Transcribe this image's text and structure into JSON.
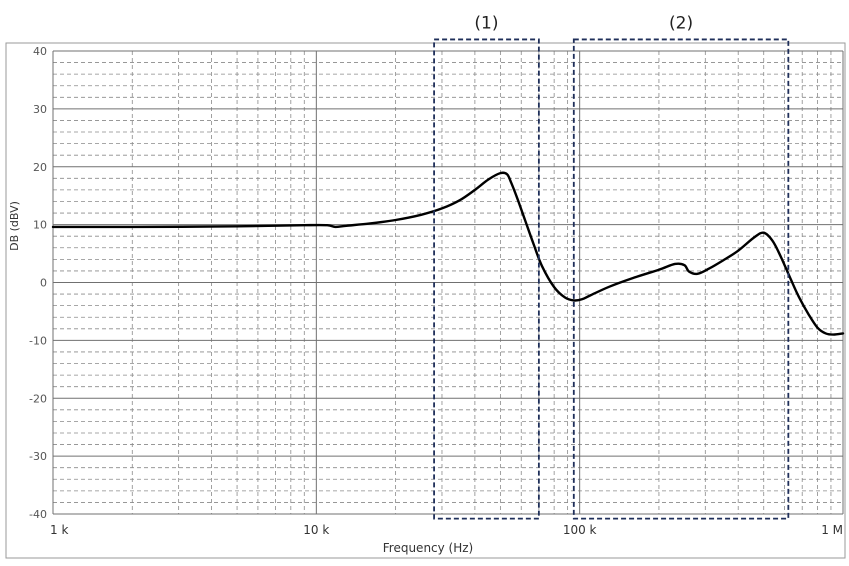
{
  "chart_data": {
    "type": "line",
    "xlabel": "Frequency (Hz)",
    "ylabel": "DB (dBV)",
    "xscale": "log",
    "xlim": [
      1000,
      1000000
    ],
    "ylim": [
      -40,
      40
    ],
    "grid": true,
    "x_ticks": [
      {
        "value": 1000,
        "label": "1 k"
      },
      {
        "value": 10000,
        "label": "10 k"
      },
      {
        "value": 100000,
        "label": "100 k"
      },
      {
        "value": 1000000,
        "label": "1 M"
      }
    ],
    "y_ticks": [
      {
        "value": 40,
        "label": "40"
      },
      {
        "value": 30,
        "label": "30"
      },
      {
        "value": 20,
        "label": "20"
      },
      {
        "value": 10,
        "label": "10"
      },
      {
        "value": 0,
        "label": "0"
      },
      {
        "value": -10,
        "label": "-10"
      },
      {
        "value": -20,
        "label": "-20"
      },
      {
        "value": -30,
        "label": "-30"
      },
      {
        "value": -40,
        "label": "-40"
      }
    ],
    "series": [
      {
        "color": "#000000",
        "x": [
          1000,
          2000,
          5000,
          9000,
          11000,
          11800,
          13000,
          16000,
          20000,
          25000,
          30000,
          35000,
          40000,
          45000,
          50000,
          53000,
          55000,
          58000,
          62000,
          67000,
          72000,
          80000,
          88000,
          95000,
          102000,
          110000,
          130000,
          160000,
          200000,
          230000,
          250000,
          260000,
          280000,
          310000,
          350000,
          400000,
          460000,
          500000,
          540000,
          580000,
          630000,
          680000,
          740000,
          800000,
          860000,
          920000,
          1000000
        ],
        "y": [
          9.6,
          9.6,
          9.7,
          9.9,
          9.9,
          9.6,
          9.8,
          10.2,
          10.8,
          11.7,
          12.8,
          14.2,
          16.0,
          17.8,
          18.9,
          18.7,
          17.2,
          14.5,
          10.8,
          6.5,
          2.8,
          -0.8,
          -2.6,
          -3.1,
          -2.9,
          -2.2,
          -0.7,
          0.8,
          2.2,
          3.2,
          3.0,
          1.9,
          1.5,
          2.4,
          3.8,
          5.5,
          7.8,
          8.6,
          7.2,
          4.5,
          0.8,
          -2.5,
          -5.5,
          -7.8,
          -8.8,
          -9.0,
          -8.8
        ]
      }
    ],
    "annotations": [
      {
        "label": "(1)",
        "x_range": [
          28000,
          70000
        ],
        "y_range": [
          -40.8,
          42.0
        ]
      },
      {
        "label": "(2)",
        "x_range": [
          95000,
          620000
        ],
        "y_range": [
          -40.8,
          42.0
        ]
      }
    ],
    "colors": {
      "grid_major": "#707070",
      "grid_minor": "#8a8a8a",
      "box": "#1f2f5a",
      "frame": "#9a9a9a"
    }
  }
}
